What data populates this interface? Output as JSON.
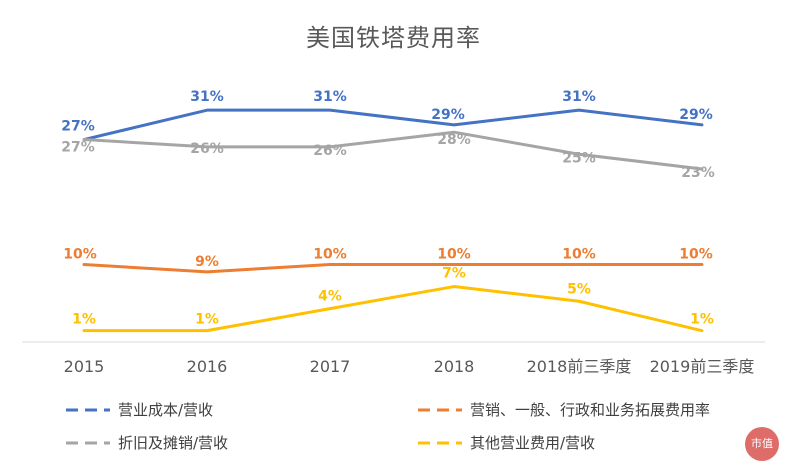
{
  "chart_data": {
    "type": "line",
    "title": "美国铁塔费用率",
    "categories": [
      "2015",
      "2016",
      "2017",
      "2018",
      "2018前三季度",
      "2019前三季度"
    ],
    "series": [
      {
        "name": "营业成本/营收",
        "color": "#4472c4",
        "values": [
          27,
          31,
          31,
          29,
          31,
          29
        ],
        "labels": [
          "27%",
          "31%",
          "31%",
          "29%",
          "31%",
          "29%"
        ]
      },
      {
        "name": "营销、一般、行政和业务拓展费用率",
        "color": "#ed7d31",
        "values": [
          10,
          9,
          10,
          10,
          10,
          10
        ],
        "labels": [
          "10%",
          "9%",
          "10%",
          "10%",
          "10%",
          "10%"
        ]
      },
      {
        "name": "折旧及摊销/营收",
        "color": "#a5a5a5",
        "values": [
          27,
          26,
          26,
          28,
          25,
          23
        ],
        "labels": [
          "27%",
          "26%",
          "26%",
          "28%",
          "25%",
          "23%"
        ]
      },
      {
        "name": "其他营业费用/营收",
        "color": "#ffc000",
        "values": [
          1,
          1,
          4,
          7,
          5,
          1
        ],
        "labels": [
          "1%",
          "1%",
          "4%",
          "7%",
          "5%",
          "1%"
        ]
      }
    ],
    "xlabel": "",
    "ylabel": "",
    "grid": false,
    "legend_position": "bottom"
  },
  "watermark": {
    "badge_text": "市值"
  }
}
